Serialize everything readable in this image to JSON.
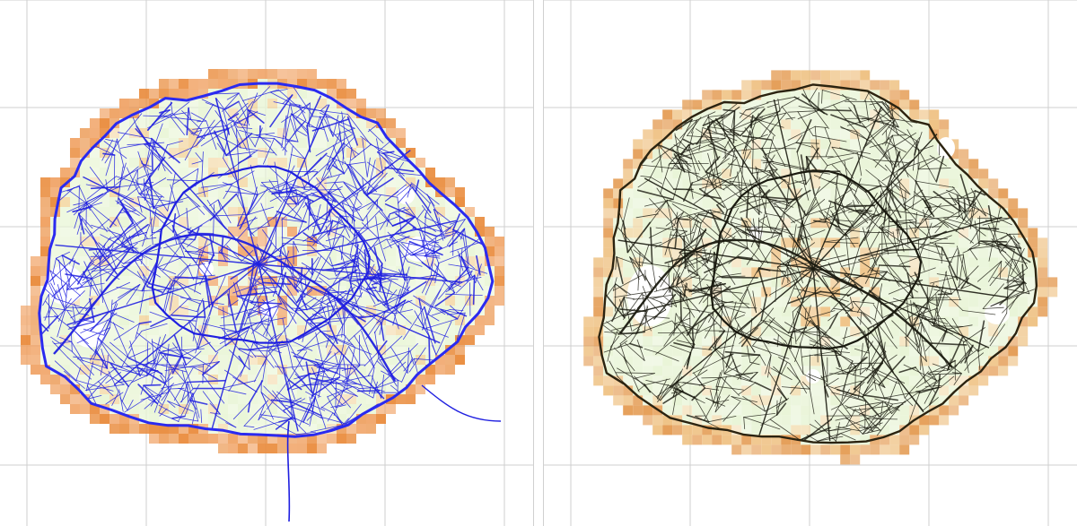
{
  "maps": [
    {
      "id": "left",
      "description_of_style": "street network overlay with density heat cells",
      "network_color": "#1f1fe0",
      "ring_color": "#2a2af0",
      "heat_colors": [
        "#e8f5d4",
        "#f3d6a0",
        "#f0a060",
        "#e98a3a"
      ],
      "show_grid": true
    },
    {
      "id": "right",
      "description_of_style": "street network overlay with density heat cells",
      "network_color": "#1a1a10",
      "ring_color": "#2b2310",
      "heat_colors": [
        "#e6f3d2",
        "#f2dcae",
        "#eebf7e",
        "#e49b52"
      ],
      "show_grid": true
    }
  ],
  "grid": {
    "color": "#cfcfcf"
  }
}
